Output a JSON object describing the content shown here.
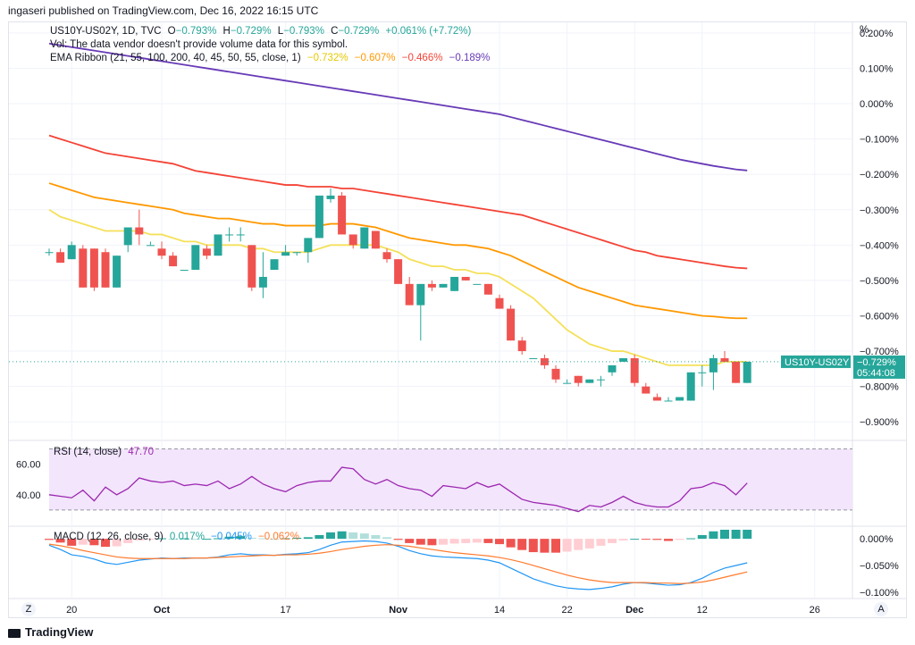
{
  "header": {
    "published": "ingaseri published on TradingView.com, Dec 16, 2022 16:15 UTC"
  },
  "footer": {
    "brand": "TradingView",
    "brand_icon": "tradingview-logo-icon"
  },
  "buttons": {
    "z": "Z",
    "a": "A"
  },
  "price_pane": {
    "unit_label": "%",
    "legend": {
      "symbol": "US10Y-US02Y, 1D, TVC",
      "o_label": "O",
      "o": "−0.793%",
      "h_label": "H",
      "h": "−0.729%",
      "l_label": "L",
      "l": "−0.793%",
      "c_label": "C",
      "c": "−0.729%",
      "change": "+0.061% (+7.72%)",
      "vol": "Vol: The data vendor doesn't provide volume data for this symbol.",
      "ema_label": "EMA Ribbon (21, 55, 100, 200, 40, 45, 50, 55, close, 1)",
      "ema1": "−0.732%",
      "ema2": "−0.607%",
      "ema3": "−0.466%",
      "ema4": "−0.189%"
    },
    "last_price_tag": {
      "symbol": "US10Y-US02Y",
      "price": "−0.729%",
      "countdown": "05:44:08"
    }
  },
  "rsi_pane": {
    "legend_label": "RSI (14, close)",
    "value": "47.70"
  },
  "macd_pane": {
    "legend_label": "MACD (12, 26, close, 9)",
    "hist": "0.017%",
    "macd": "−0.045%",
    "signal": "−0.062%"
  },
  "colors": {
    "up": "#26a69a",
    "down": "#ef5350",
    "ema1": "#f5e05a",
    "ema2": "#ff9800",
    "ema3": "#f44336",
    "ema4": "#673ab7",
    "rsi": "#9c27b0",
    "macd": "#2196f3",
    "signal": "#ff7a2e",
    "hist_pos": "#26a69a",
    "hist_neg": "#ef5350",
    "hist_pos_light": "#b2dfdb",
    "hist_neg_light": "#ffcdd2"
  },
  "chart_data": [
    {
      "type": "candlestick",
      "y_axis_labels": [
        "0.200%",
        "0.100%",
        "0.000%",
        "−0.100%",
        "−0.200%",
        "−0.300%",
        "−0.400%",
        "−0.500%",
        "−0.600%",
        "−0.700%",
        "−0.800%",
        "−0.900%"
      ],
      "ylim": [
        -0.95,
        0.23
      ],
      "x_ticks": [
        {
          "label": "20",
          "i": 2
        },
        {
          "label": "Oct",
          "i": 10
        },
        {
          "label": "17",
          "i": 21
        },
        {
          "label": "Nov",
          "i": 31
        },
        {
          "label": "14",
          "i": 40
        },
        {
          "label": "22",
          "i": 46
        },
        {
          "label": "Dec",
          "i": 52
        },
        {
          "label": "12",
          "i": 58
        },
        {
          "label": "26",
          "i": 68
        }
      ],
      "candles": [
        [
          -0.42,
          -0.41,
          -0.43,
          -0.42
        ],
        [
          -0.42,
          -0.41,
          -0.45,
          -0.45
        ],
        [
          -0.44,
          -0.39,
          -0.44,
          -0.4
        ],
        [
          -0.41,
          -0.4,
          -0.52,
          -0.52
        ],
        [
          -0.41,
          -0.41,
          -0.53,
          -0.52
        ],
        [
          -0.42,
          -0.41,
          -0.52,
          -0.52
        ],
        [
          -0.52,
          -0.43,
          -0.52,
          -0.43
        ],
        [
          -0.4,
          -0.35,
          -0.42,
          -0.35
        ],
        [
          -0.35,
          -0.3,
          -0.4,
          -0.37
        ],
        [
          -0.4,
          -0.39,
          -0.4,
          -0.4
        ],
        [
          -0.41,
          -0.39,
          -0.44,
          -0.43
        ],
        [
          -0.43,
          -0.42,
          -0.46,
          -0.46
        ],
        [
          -0.47,
          -0.47,
          -0.47,
          -0.47
        ],
        [
          -0.47,
          -0.4,
          -0.47,
          -0.4
        ],
        [
          -0.41,
          -0.4,
          -0.44,
          -0.43
        ],
        [
          -0.43,
          -0.37,
          -0.43,
          -0.37
        ],
        [
          -0.37,
          -0.35,
          -0.39,
          -0.37
        ],
        [
          -0.37,
          -0.35,
          -0.39,
          -0.37
        ],
        [
          -0.4,
          -0.4,
          -0.53,
          -0.52
        ],
        [
          -0.52,
          -0.42,
          -0.55,
          -0.49
        ],
        [
          -0.47,
          -0.44,
          -0.47,
          -0.44
        ],
        [
          -0.43,
          -0.4,
          -0.43,
          -0.42
        ],
        [
          -0.42,
          -0.42,
          -0.43,
          -0.42
        ],
        [
          -0.42,
          -0.38,
          -0.45,
          -0.38
        ],
        [
          -0.38,
          -0.26,
          -0.38,
          -0.26
        ],
        [
          -0.27,
          -0.24,
          -0.28,
          -0.26
        ],
        [
          -0.26,
          -0.25,
          -0.37,
          -0.37
        ],
        [
          -0.37,
          -0.37,
          -0.41,
          -0.4
        ],
        [
          -0.41,
          -0.35,
          -0.41,
          -0.35
        ],
        [
          -0.36,
          -0.36,
          -0.41,
          -0.41
        ],
        [
          -0.42,
          -0.41,
          -0.45,
          -0.44
        ],
        [
          -0.44,
          -0.44,
          -0.5,
          -0.51
        ],
        [
          -0.51,
          -0.49,
          -0.57,
          -0.57
        ],
        [
          -0.57,
          -0.51,
          -0.67,
          -0.51
        ],
        [
          -0.51,
          -0.5,
          -0.53,
          -0.52
        ],
        [
          -0.52,
          -0.51,
          -0.52,
          -0.51
        ],
        [
          -0.53,
          -0.49,
          -0.53,
          -0.49
        ],
        [
          -0.49,
          -0.49,
          -0.5,
          -0.5
        ],
        [
          -0.51,
          -0.51,
          -0.51,
          -0.51
        ],
        [
          -0.51,
          -0.51,
          -0.54,
          -0.54
        ],
        [
          -0.55,
          -0.54,
          -0.58,
          -0.58
        ],
        [
          -0.58,
          -0.57,
          -0.67,
          -0.67
        ],
        [
          -0.67,
          -0.66,
          -0.71,
          -0.7
        ],
        [
          -0.72,
          -0.72,
          -0.72,
          -0.72
        ],
        [
          -0.72,
          -0.71,
          -0.75,
          -0.74
        ],
        [
          -0.75,
          -0.74,
          -0.79,
          -0.78
        ],
        [
          -0.79,
          -0.78,
          -0.79,
          -0.79
        ],
        [
          -0.77,
          -0.77,
          -0.8,
          -0.79
        ],
        [
          -0.79,
          -0.78,
          -0.79,
          -0.78
        ],
        [
          -0.78,
          -0.77,
          -0.8,
          -0.78
        ],
        [
          -0.76,
          -0.74,
          -0.77,
          -0.74
        ],
        [
          -0.73,
          -0.72,
          -0.73,
          -0.72
        ],
        [
          -0.72,
          -0.71,
          -0.8,
          -0.79
        ],
        [
          -0.8,
          -0.79,
          -0.82,
          -0.82
        ],
        [
          -0.83,
          -0.82,
          -0.84,
          -0.84
        ],
        [
          -0.84,
          -0.83,
          -0.84,
          -0.84
        ],
        [
          -0.84,
          -0.83,
          -0.84,
          -0.83
        ],
        [
          -0.84,
          -0.76,
          -0.84,
          -0.76
        ],
        [
          -0.76,
          -0.74,
          -0.8,
          -0.76
        ],
        [
          -0.76,
          -0.71,
          -0.81,
          -0.72
        ],
        [
          -0.72,
          -0.7,
          -0.73,
          -0.73
        ],
        [
          -0.73,
          -0.73,
          -0.79,
          -0.79
        ],
        [
          -0.79,
          -0.73,
          -0.79,
          -0.73
        ]
      ],
      "ema_series": [
        {
          "key": "ema1",
          "values": [
            -0.3,
            -0.32,
            -0.33,
            -0.34,
            -0.35,
            -0.36,
            -0.36,
            -0.36,
            -0.36,
            -0.37,
            -0.37,
            -0.38,
            -0.39,
            -0.39,
            -0.4,
            -0.4,
            -0.4,
            -0.4,
            -0.41,
            -0.41,
            -0.42,
            -0.42,
            -0.42,
            -0.42,
            -0.41,
            -0.4,
            -0.4,
            -0.4,
            -0.4,
            -0.4,
            -0.41,
            -0.42,
            -0.44,
            -0.45,
            -0.46,
            -0.46,
            -0.47,
            -0.47,
            -0.48,
            -0.48,
            -0.49,
            -0.51,
            -0.53,
            -0.55,
            -0.58,
            -0.61,
            -0.64,
            -0.66,
            -0.68,
            -0.69,
            -0.7,
            -0.7,
            -0.71,
            -0.72,
            -0.73,
            -0.74,
            -0.74,
            -0.74,
            -0.74,
            -0.74,
            -0.73,
            -0.73,
            -0.73
          ]
        },
        {
          "key": "ema2",
          "values": [
            -0.225,
            -0.235,
            -0.245,
            -0.255,
            -0.265,
            -0.27,
            -0.275,
            -0.28,
            -0.285,
            -0.29,
            -0.295,
            -0.3,
            -0.31,
            -0.315,
            -0.32,
            -0.325,
            -0.325,
            -0.33,
            -0.335,
            -0.34,
            -0.34,
            -0.345,
            -0.345,
            -0.345,
            -0.345,
            -0.34,
            -0.34,
            -0.34,
            -0.345,
            -0.35,
            -0.36,
            -0.37,
            -0.38,
            -0.385,
            -0.39,
            -0.395,
            -0.4,
            -0.4,
            -0.405,
            -0.41,
            -0.42,
            -0.43,
            -0.445,
            -0.46,
            -0.475,
            -0.49,
            -0.505,
            -0.52,
            -0.53,
            -0.54,
            -0.55,
            -0.56,
            -0.57,
            -0.575,
            -0.58,
            -0.585,
            -0.59,
            -0.595,
            -0.6,
            -0.602,
            -0.605,
            -0.607,
            -0.607
          ]
        },
        {
          "key": "ema3",
          "values": [
            -0.09,
            -0.1,
            -0.11,
            -0.12,
            -0.13,
            -0.14,
            -0.145,
            -0.15,
            -0.155,
            -0.16,
            -0.165,
            -0.17,
            -0.18,
            -0.19,
            -0.195,
            -0.2,
            -0.205,
            -0.21,
            -0.215,
            -0.22,
            -0.225,
            -0.23,
            -0.23,
            -0.235,
            -0.235,
            -0.235,
            -0.24,
            -0.24,
            -0.245,
            -0.25,
            -0.255,
            -0.26,
            -0.265,
            -0.27,
            -0.275,
            -0.28,
            -0.285,
            -0.29,
            -0.295,
            -0.3,
            -0.305,
            -0.31,
            -0.315,
            -0.325,
            -0.335,
            -0.345,
            -0.355,
            -0.365,
            -0.375,
            -0.385,
            -0.395,
            -0.405,
            -0.415,
            -0.42,
            -0.43,
            -0.435,
            -0.44,
            -0.445,
            -0.45,
            -0.455,
            -0.46,
            -0.464,
            -0.466
          ]
        },
        {
          "key": "ema4",
          "values": [
            0.17,
            0.165,
            0.16,
            0.155,
            0.15,
            0.145,
            0.14,
            0.135,
            0.13,
            0.125,
            0.12,
            0.115,
            0.11,
            0.105,
            0.1,
            0.095,
            0.09,
            0.085,
            0.08,
            0.075,
            0.07,
            0.065,
            0.06,
            0.055,
            0.05,
            0.045,
            0.04,
            0.035,
            0.03,
            0.025,
            0.02,
            0.015,
            0.01,
            0.005,
            0.0,
            -0.005,
            -0.01,
            -0.015,
            -0.02,
            -0.025,
            -0.03,
            -0.038,
            -0.046,
            -0.054,
            -0.062,
            -0.07,
            -0.078,
            -0.086,
            -0.094,
            -0.102,
            -0.11,
            -0.118,
            -0.126,
            -0.134,
            -0.142,
            -0.15,
            -0.158,
            -0.164,
            -0.17,
            -0.176,
            -0.181,
            -0.186,
            -0.189
          ]
        }
      ]
    },
    {
      "type": "line",
      "name": "RSI",
      "y_axis_labels": [
        "60.00",
        "40.00"
      ],
      "ylim": [
        20,
        75
      ],
      "bands": [
        70,
        30
      ],
      "values": [
        40,
        39,
        38,
        43,
        36,
        45,
        40,
        44,
        51,
        49,
        48,
        49,
        46,
        47,
        46,
        49,
        44,
        47,
        52,
        47,
        44,
        42,
        46,
        48,
        49,
        49,
        58,
        57,
        50,
        47,
        50,
        46,
        44,
        43,
        39,
        46,
        45,
        44,
        48,
        45,
        47,
        42,
        37,
        35,
        34,
        33,
        31,
        29,
        33,
        32,
        35,
        39,
        35,
        33,
        32,
        32,
        36,
        44,
        45,
        48,
        46,
        40,
        47.7
      ]
    },
    {
      "type": "line",
      "name": "MACD",
      "y_axis_labels": [
        "0.000%",
        "−0.050%",
        "−0.100%"
      ],
      "ylim": [
        -0.112,
        0.022
      ],
      "macd": [
        -0.012,
        -0.02,
        -0.03,
        -0.033,
        -0.038,
        -0.045,
        -0.048,
        -0.044,
        -0.04,
        -0.038,
        -0.036,
        -0.037,
        -0.036,
        -0.036,
        -0.036,
        -0.034,
        -0.03,
        -0.028,
        -0.03,
        -0.03,
        -0.031,
        -0.029,
        -0.028,
        -0.026,
        -0.02,
        -0.012,
        -0.006,
        -0.005,
        -0.004,
        -0.005,
        -0.008,
        -0.014,
        -0.022,
        -0.028,
        -0.032,
        -0.034,
        -0.035,
        -0.036,
        -0.037,
        -0.04,
        -0.045,
        -0.055,
        -0.065,
        -0.075,
        -0.082,
        -0.088,
        -0.092,
        -0.094,
        -0.095,
        -0.093,
        -0.09,
        -0.085,
        -0.082,
        -0.083,
        -0.085,
        -0.087,
        -0.086,
        -0.082,
        -0.074,
        -0.063,
        -0.055,
        -0.05,
        -0.045
      ],
      "signal": [
        -0.01,
        -0.013,
        -0.017,
        -0.022,
        -0.026,
        -0.03,
        -0.034,
        -0.036,
        -0.037,
        -0.037,
        -0.037,
        -0.037,
        -0.037,
        -0.036,
        -0.036,
        -0.035,
        -0.034,
        -0.033,
        -0.032,
        -0.031,
        -0.031,
        -0.03,
        -0.03,
        -0.029,
        -0.027,
        -0.024,
        -0.02,
        -0.017,
        -0.014,
        -0.012,
        -0.011,
        -0.012,
        -0.014,
        -0.017,
        -0.02,
        -0.023,
        -0.026,
        -0.028,
        -0.03,
        -0.032,
        -0.035,
        -0.039,
        -0.044,
        -0.05,
        -0.056,
        -0.062,
        -0.068,
        -0.073,
        -0.077,
        -0.08,
        -0.082,
        -0.082,
        -0.082,
        -0.082,
        -0.083,
        -0.083,
        -0.084,
        -0.083,
        -0.081,
        -0.077,
        -0.072,
        -0.067,
        -0.062
      ],
      "hist": [
        -0.002,
        -0.007,
        -0.013,
        -0.011,
        -0.012,
        -0.015,
        -0.014,
        -0.008,
        -0.003,
        -0.001,
        0.001,
        0.0,
        0.001,
        0.0,
        0.0,
        0.001,
        0.004,
        0.005,
        0.002,
        0.001,
        0.0,
        0.001,
        0.002,
        0.003,
        0.007,
        0.012,
        0.014,
        0.012,
        0.01,
        0.007,
        0.003,
        -0.002,
        -0.008,
        -0.011,
        -0.012,
        -0.011,
        -0.009,
        -0.008,
        -0.007,
        -0.008,
        -0.01,
        -0.016,
        -0.021,
        -0.025,
        -0.026,
        -0.026,
        -0.024,
        -0.021,
        -0.018,
        -0.013,
        -0.008,
        -0.003,
        0.0,
        -0.001,
        -0.002,
        -0.004,
        -0.002,
        0.001,
        0.007,
        0.014,
        0.017,
        0.017,
        0.017
      ]
    }
  ]
}
